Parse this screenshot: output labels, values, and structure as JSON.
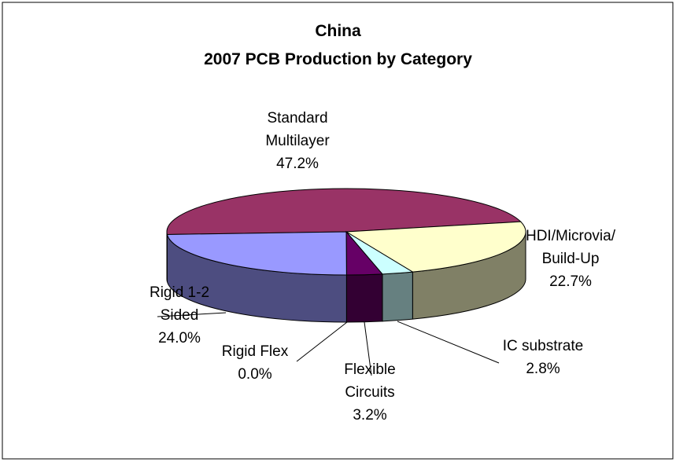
{
  "chart_data": {
    "type": "pie3d",
    "title": "China",
    "subtitle": "2007 PCB Production by Category",
    "categories": [
      "Standard Multilayer",
      "HDI/Microvia/ Build-Up",
      "IC substrate",
      "Flexible Circuits",
      "Rigid Flex",
      "Rigid 1-2 Sided"
    ],
    "values": [
      47.2,
      22.7,
      2.8,
      3.2,
      0.0,
      24.0
    ],
    "value_labels": [
      "47.2%",
      "22.7%",
      "2.8%",
      "3.2%",
      "0.0%",
      "24.0%"
    ],
    "colors": [
      "#993366",
      "#FFFFCC",
      "#CCFFFF",
      "#660066",
      "#FF8080",
      "#9999FF"
    ]
  }
}
